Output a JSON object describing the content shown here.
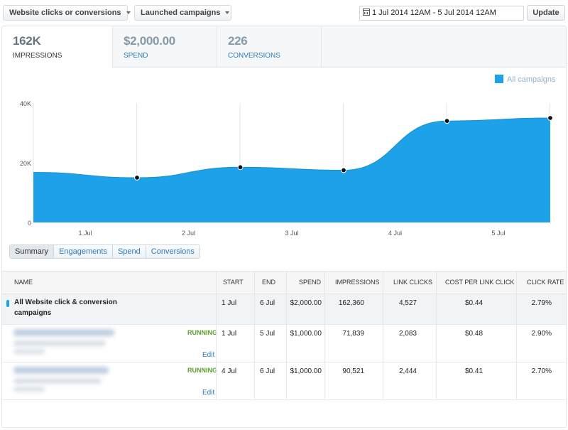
{
  "toolbar": {
    "objective_label": "Website clicks or conversions",
    "campaigns_label": "Launched campaigns",
    "date_range": "1 Jul 2014 12AM - 5 Jul 2014 12AM",
    "update_label": "Update"
  },
  "metric_tabs": [
    {
      "value": "162K",
      "label": "IMPRESSIONS",
      "active": true
    },
    {
      "value": "$2,000.00",
      "label": "SPEND",
      "active": false
    },
    {
      "value": "226",
      "label": "CONVERSIONS",
      "active": false
    }
  ],
  "legend": {
    "label": "All campaigns",
    "color": "#1da1e8"
  },
  "chart_data": {
    "type": "area",
    "x": [
      "1 Jul",
      "2 Jul",
      "3 Jul",
      "4 Jul",
      "5 Jul"
    ],
    "series": [
      {
        "name": "All campaigns",
        "values": [
          15000,
          18500,
          17500,
          34000,
          35000
        ]
      }
    ],
    "ylim": [
      0,
      40000
    ],
    "y_ticks": [
      "0",
      "20K",
      "40K"
    ],
    "grid": true,
    "legend_position": "top-right"
  },
  "subtabs": [
    {
      "label": "Summary",
      "active": true
    },
    {
      "label": "Engagements",
      "active": false
    },
    {
      "label": "Spend",
      "active": false
    },
    {
      "label": "Conversions",
      "active": false
    }
  ],
  "table": {
    "headers": [
      "NAME",
      "START",
      "END",
      "SPEND",
      "IMPRESSIONS",
      "LINK CLICKS",
      "COST PER LINK CLICK",
      "CLICK RATE"
    ],
    "summary": {
      "name_line1": "All Website click & conversion",
      "name_line2": "campaigns",
      "start": "1 Jul",
      "end": "6 Jul",
      "spend": "$2,000.00",
      "impressions": "162,360",
      "link_clicks": "4,527",
      "cost_per_link_click": "$0.44",
      "click_rate": "2.79%"
    },
    "rows": [
      {
        "status": "RUNNING",
        "edit": "Edit",
        "start": "1 Jul",
        "end": "5 Jul",
        "spend": "$1,000.00",
        "impressions": "71,839",
        "link_clicks": "2,083",
        "cost_per_link_click": "$0.48",
        "click_rate": "2.90%"
      },
      {
        "status": "RUNNING",
        "edit": "Edit",
        "start": "4 Jul",
        "end": "6 Jul",
        "spend": "$1,000.00",
        "impressions": "90,521",
        "link_clicks": "2,444",
        "cost_per_link_click": "$0.41",
        "click_rate": "2.70%"
      }
    ]
  }
}
